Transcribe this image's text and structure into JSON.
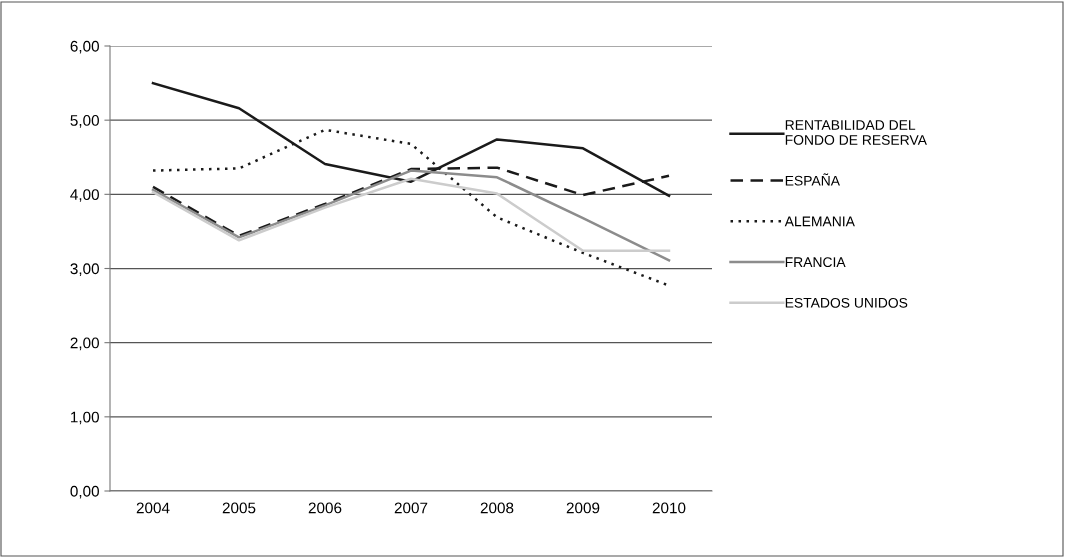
{
  "chart_data": {
    "type": "line",
    "categories": [
      "2004",
      "2005",
      "2006",
      "2007",
      "2008",
      "2009",
      "2010"
    ],
    "series": [
      {
        "name": "RENTABILIDAD DEL\nFONDO DE RESERVA",
        "color": "#1a1a1a",
        "line_style": "solid",
        "values": [
          5.5,
          5.16,
          4.41,
          4.17,
          4.74,
          4.62,
          3.98
        ]
      },
      {
        "name": "ESPAÑA",
        "color": "#1a1a1a",
        "line_style": "dashed",
        "values": [
          4.1,
          3.44,
          3.87,
          4.34,
          4.36,
          3.99,
          4.25
        ]
      },
      {
        "name": "ALEMANIA",
        "color": "#1a1a1a",
        "line_style": "dotted",
        "values": [
          4.32,
          4.35,
          4.87,
          4.68,
          3.69,
          3.21,
          2.77
        ]
      },
      {
        "name": "FRANCIA",
        "color": "#8c8c8c",
        "line_style": "solid",
        "values": [
          4.06,
          3.42,
          3.85,
          4.32,
          4.23,
          3.68,
          3.11
        ]
      },
      {
        "name": "ESTADOS UNIDOS",
        "color": "#cccccc",
        "line_style": "solid",
        "values": [
          4.03,
          3.38,
          3.82,
          4.21,
          4.01,
          3.24,
          3.24
        ]
      }
    ],
    "ylim": [
      0,
      6
    ],
    "yticks": [
      {
        "value": 0,
        "label": "0,00"
      },
      {
        "value": 1,
        "label": "1,00"
      },
      {
        "value": 2,
        "label": "2,00"
      },
      {
        "value": 3,
        "label": "3,00"
      },
      {
        "value": 4,
        "label": "4,00"
      },
      {
        "value": 5,
        "label": "5,00"
      },
      {
        "value": 6,
        "label": "6,00"
      }
    ],
    "grid": "y",
    "legend": "right",
    "marker": "none"
  }
}
